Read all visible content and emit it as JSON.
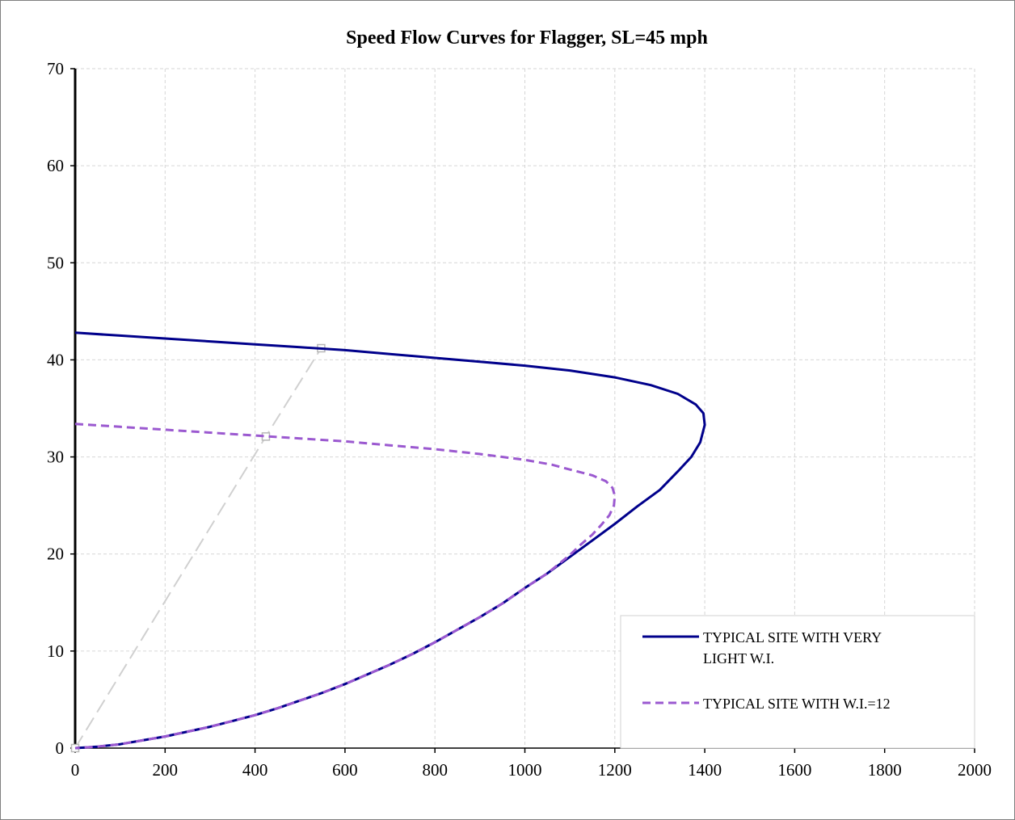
{
  "chart_data": {
    "type": "line",
    "title": "Speed Flow Curves for Flagger, SL=45 mph",
    "xlabel": "",
    "ylabel": "",
    "xlim": [
      0,
      2000
    ],
    "ylim": [
      0,
      70
    ],
    "x_ticks": [
      "0",
      "200",
      "400",
      "600",
      "800",
      "1000",
      "1200",
      "1400",
      "1600",
      "1800",
      "2000"
    ],
    "y_ticks": [
      "0",
      "10",
      "20",
      "30",
      "40",
      "50",
      "60",
      "70"
    ],
    "grid": true,
    "legend_position": "bottom-right",
    "series": [
      {
        "name": "TYPICAL SITE WITH VERY LIGHT W.I.",
        "name_lines": [
          "TYPICAL SITE WITH VERY",
          "LIGHT W.I."
        ],
        "color": "#00008b",
        "style": "solid",
        "points": [
          [
            0,
            42.8
          ],
          [
            100,
            42.5
          ],
          [
            200,
            42.2
          ],
          [
            300,
            41.9
          ],
          [
            400,
            41.6
          ],
          [
            500,
            41.3
          ],
          [
            600,
            41.0
          ],
          [
            700,
            40.6
          ],
          [
            800,
            40.2
          ],
          [
            900,
            39.8
          ],
          [
            1000,
            39.4
          ],
          [
            1100,
            38.9
          ],
          [
            1200,
            38.2
          ],
          [
            1280,
            37.4
          ],
          [
            1340,
            36.5
          ],
          [
            1380,
            35.4
          ],
          [
            1397,
            34.5
          ],
          [
            1400,
            33.3
          ],
          [
            1390,
            31.5
          ],
          [
            1370,
            30.0
          ],
          [
            1340,
            28.5
          ],
          [
            1300,
            26.6
          ],
          [
            1250,
            24.9
          ],
          [
            1200,
            23.1
          ],
          [
            1150,
            21.4
          ],
          [
            1100,
            19.7
          ],
          [
            1050,
            18.0
          ],
          [
            1000,
            16.5
          ],
          [
            950,
            14.9
          ],
          [
            900,
            13.5
          ],
          [
            850,
            12.2
          ],
          [
            800,
            10.9
          ],
          [
            750,
            9.7
          ],
          [
            700,
            8.6
          ],
          [
            650,
            7.6
          ],
          [
            600,
            6.6
          ],
          [
            550,
            5.7
          ],
          [
            500,
            4.9
          ],
          [
            450,
            4.1
          ],
          [
            400,
            3.4
          ],
          [
            350,
            2.8
          ],
          [
            300,
            2.2
          ],
          [
            250,
            1.7
          ],
          [
            200,
            1.2
          ],
          [
            150,
            0.8
          ],
          [
            100,
            0.4
          ],
          [
            50,
            0.15
          ],
          [
            0,
            0
          ]
        ]
      },
      {
        "name": "TYPICAL SITE WITH W.I.=12",
        "name_lines": [
          "TYPICAL SITE WITH W.I.=12"
        ],
        "color": "#9b59d0",
        "style": "dashed",
        "points": [
          [
            0,
            33.4
          ],
          [
            100,
            33.1
          ],
          [
            200,
            32.8
          ],
          [
            300,
            32.5
          ],
          [
            400,
            32.2
          ],
          [
            500,
            31.9
          ],
          [
            600,
            31.6
          ],
          [
            700,
            31.2
          ],
          [
            800,
            30.8
          ],
          [
            900,
            30.3
          ],
          [
            1000,
            29.7
          ],
          [
            1060,
            29.2
          ],
          [
            1100,
            28.7
          ],
          [
            1150,
            28.1
          ],
          [
            1180,
            27.5
          ],
          [
            1195,
            26.8
          ],
          [
            1200,
            26.0
          ],
          [
            1198,
            25.0
          ],
          [
            1188,
            24.0
          ],
          [
            1170,
            23.0
          ],
          [
            1150,
            22.0
          ],
          [
            1125,
            21.0
          ],
          [
            1100,
            19.9
          ],
          [
            1050,
            18.0
          ],
          [
            1000,
            16.5
          ],
          [
            950,
            14.9
          ],
          [
            900,
            13.5
          ],
          [
            850,
            12.2
          ],
          [
            800,
            10.9
          ],
          [
            750,
            9.7
          ],
          [
            700,
            8.6
          ],
          [
            650,
            7.6
          ],
          [
            600,
            6.6
          ],
          [
            550,
            5.7
          ],
          [
            500,
            4.9
          ],
          [
            450,
            4.1
          ],
          [
            400,
            3.4
          ],
          [
            350,
            2.8
          ],
          [
            300,
            2.2
          ],
          [
            250,
            1.7
          ],
          [
            200,
            1.2
          ],
          [
            150,
            0.8
          ],
          [
            100,
            0.4
          ],
          [
            50,
            0.15
          ],
          [
            0,
            0
          ]
        ]
      },
      {
        "name": "",
        "color": "#d0d0d0",
        "style": "long-dash",
        "markers": true,
        "points": [
          [
            0,
            0
          ],
          [
            424,
            32.1
          ],
          [
            547,
            41.2
          ]
        ]
      }
    ]
  }
}
